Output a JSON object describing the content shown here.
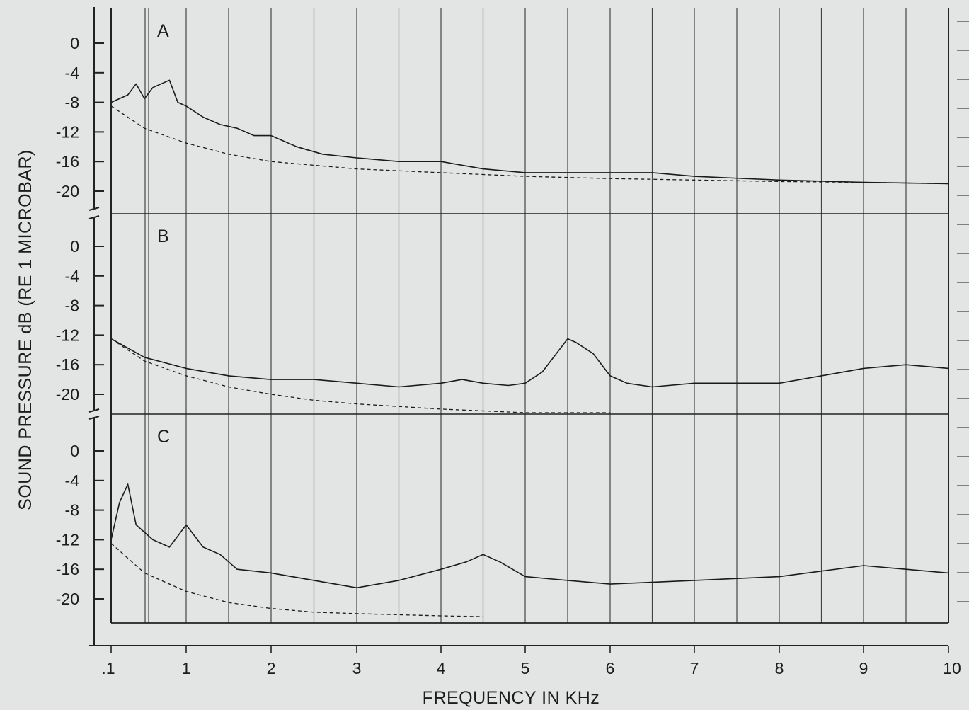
{
  "chart_data": {
    "type": "line",
    "xlabel": "FREQUENCY IN KHz",
    "ylabel": "SOUND PRESSURE dB (RE 1 MICROBAR)",
    "x_tick_labels": [
      ".1",
      "1",
      "2",
      "3",
      "4",
      "5",
      "6",
      "7",
      "8",
      "9",
      "10"
    ],
    "x_tick_values": [
      0.1,
      1,
      2,
      3,
      4,
      5,
      6,
      7,
      8,
      9,
      10
    ],
    "xlim": [
      0.1,
      10
    ],
    "y_tick_labels": [
      "0",
      "-4",
      "-8",
      "-12",
      "-16",
      "-20"
    ],
    "y_tick_values": [
      0,
      -4,
      -8,
      -12,
      -16,
      -20
    ],
    "grid": "vertical",
    "panels": [
      {
        "label": "A",
        "ylim": [
          -23,
          4.5
        ],
        "series": [
          {
            "style": "solid",
            "x": [
              0.1,
              0.3,
              0.4,
              0.5,
              0.6,
              0.8,
              0.9,
              1.0,
              1.2,
              1.4,
              1.6,
              1.8,
              2.0,
              2.3,
              2.6,
              3.0,
              3.5,
              4.0,
              4.5,
              5.0,
              5.5,
              6.0,
              6.5,
              7.0,
              8.0,
              9.0,
              10.0
            ],
            "y": [
              -8,
              -7,
              -5.5,
              -7.5,
              -6,
              -5,
              -8,
              -8.5,
              -10,
              -11,
              -11.5,
              -12.5,
              -12.5,
              -14,
              -15,
              -15.5,
              -16,
              -16,
              -17,
              -17.5,
              -17.5,
              -17.5,
              -17.5,
              -18,
              -18.5,
              -18.8,
              -19
            ]
          },
          {
            "style": "dashed",
            "x": [
              0.1,
              0.5,
              1.0,
              1.5,
              2.0,
              2.5,
              3.0,
              4.0,
              5.0,
              6.0,
              7.0,
              8.0,
              9.0,
              10.0
            ],
            "y": [
              -8.5,
              -11.5,
              -13.5,
              -15,
              -16,
              -16.5,
              -17,
              -17.5,
              -18,
              -18.3,
              -18.5,
              -18.7,
              -18.8,
              -19
            ]
          }
        ]
      },
      {
        "label": "B",
        "ylim": [
          -23,
          4.5
        ],
        "series": [
          {
            "style": "solid",
            "x": [
              0.1,
              0.5,
              1.0,
              1.5,
              2.0,
              2.5,
              3.0,
              3.5,
              4.0,
              4.25,
              4.5,
              4.8,
              5.0,
              5.2,
              5.4,
              5.5,
              5.6,
              5.8,
              6.0,
              6.2,
              6.5,
              7.0,
              7.5,
              8.0,
              8.5,
              9.0,
              9.5,
              10.0
            ],
            "y": [
              -12.5,
              -15,
              -16.5,
              -17.5,
              -18,
              -18,
              -18.5,
              -19,
              -18.5,
              -18,
              -18.5,
              -18.8,
              -18.5,
              -17,
              -14,
              -12.5,
              -13,
              -14.5,
              -17.5,
              -18.5,
              -19,
              -18.5,
              -18.5,
              -18.5,
              -17.5,
              -16.5,
              -16,
              -16.5
            ]
          },
          {
            "style": "dashed",
            "x": [
              0.1,
              0.5,
              1.0,
              1.5,
              2.0,
              2.5,
              3.0,
              4.0,
              5.0,
              6.0
            ],
            "y": [
              -12.5,
              -15.5,
              -17.5,
              -19,
              -20,
              -20.8,
              -21.3,
              -22,
              -22.5,
              -22.6
            ]
          }
        ]
      },
      {
        "label": "C",
        "ylim": [
          -23,
          4.5
        ],
        "series": [
          {
            "style": "solid",
            "x": [
              0.1,
              0.2,
              0.3,
              0.4,
              0.6,
              0.8,
              1.0,
              1.2,
              1.4,
              1.6,
              2.0,
              2.5,
              3.0,
              3.5,
              4.0,
              4.3,
              4.5,
              4.7,
              5.0,
              5.5,
              6.0,
              7.0,
              8.0,
              9.0,
              10.0
            ],
            "y": [
              -12,
              -7,
              -4.5,
              -10,
              -12,
              -13,
              -10,
              -13,
              -14,
              -16,
              -16.5,
              -17.5,
              -18.5,
              -17.5,
              -16,
              -15,
              -14,
              -15,
              -17,
              -17.5,
              -18,
              -17.5,
              -17,
              -15.5,
              -16.5
            ]
          },
          {
            "style": "dashed",
            "x": [
              0.1,
              0.5,
              1.0,
              1.5,
              2.0,
              2.5,
              3.0,
              4.0,
              4.5
            ],
            "y": [
              -12.5,
              -16.5,
              -19,
              -20.5,
              -21.3,
              -21.8,
              -22,
              -22.3,
              -22.4
            ]
          }
        ]
      }
    ]
  }
}
